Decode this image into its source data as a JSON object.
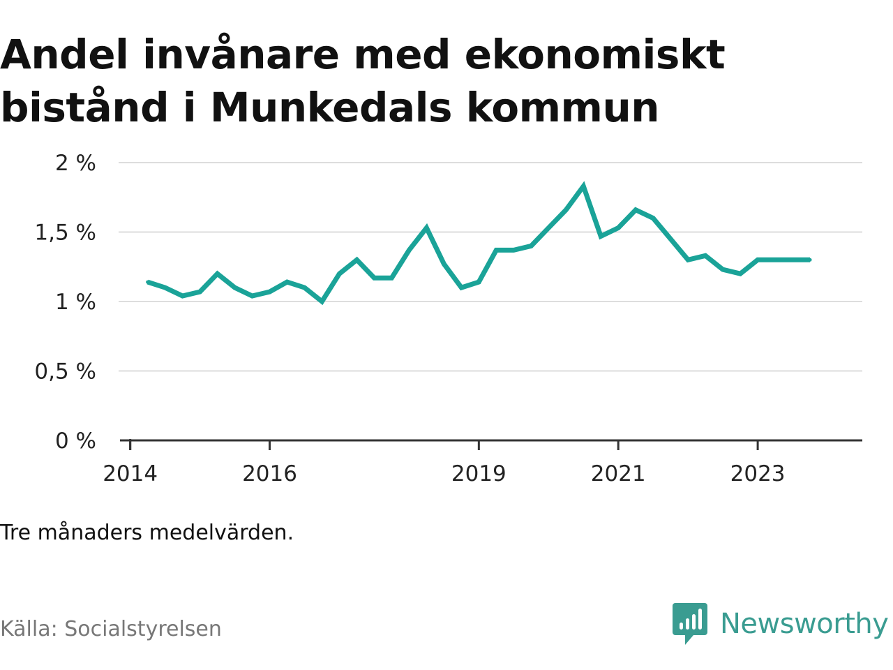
{
  "title_lines": [
    "Andel invånare med ekonomiskt",
    "bistånd i Munkedals kommun"
  ],
  "note": "Tre månaders medelvärden.",
  "source": "Källa: Socialstyrelsen",
  "brand": {
    "name": "Newsworthy",
    "icon": "bar-chart-speech-bubble-icon"
  },
  "colors": {
    "line": "#1aa398",
    "brand": "#3a9c91",
    "grid": "#dddddd",
    "axis": "#333333"
  },
  "chart_data": {
    "type": "line",
    "title": "Andel invånare med ekonomiskt bistånd i Munkedals kommun",
    "xlabel": "",
    "ylabel": "",
    "x_axis_type": "date",
    "ylim": [
      0,
      2
    ],
    "y_ticks": [
      {
        "value": 0,
        "label": "0 %"
      },
      {
        "value": 0.5,
        "label": "0,5 %"
      },
      {
        "value": 1,
        "label": "1 %"
      },
      {
        "value": 1.5,
        "label": "1,5 %"
      },
      {
        "value": 2,
        "label": "2 %"
      }
    ],
    "x_ticks": [
      {
        "date": "2014-01",
        "label": "2014"
      },
      {
        "date": "2016-01",
        "label": "2016"
      },
      {
        "date": "2019-01",
        "label": "2019"
      },
      {
        "date": "2021-01",
        "label": "2021"
      },
      {
        "date": "2023-01",
        "label": "2023"
      }
    ],
    "xlim": [
      "2013-11",
      "2024-07"
    ],
    "grid": true,
    "legend": "none",
    "series": [
      {
        "points": [
          {
            "date": "2014-04",
            "value": 1.14
          },
          {
            "date": "2014-07",
            "value": 1.1
          },
          {
            "date": "2014-10",
            "value": 1.04
          },
          {
            "date": "2015-01",
            "value": 1.07
          },
          {
            "date": "2015-04",
            "value": 1.2
          },
          {
            "date": "2015-07",
            "value": 1.1
          },
          {
            "date": "2015-10",
            "value": 1.04
          },
          {
            "date": "2016-01",
            "value": 1.07
          },
          {
            "date": "2016-04",
            "value": 1.14
          },
          {
            "date": "2016-07",
            "value": 1.1
          },
          {
            "date": "2016-10",
            "value": 1.0
          },
          {
            "date": "2017-01",
            "value": 1.2
          },
          {
            "date": "2017-04",
            "value": 1.3
          },
          {
            "date": "2017-07",
            "value": 1.17
          },
          {
            "date": "2017-10",
            "value": 1.17
          },
          {
            "date": "2018-01",
            "value": 1.37
          },
          {
            "date": "2018-04",
            "value": 1.53
          },
          {
            "date": "2018-07",
            "value": 1.27
          },
          {
            "date": "2018-10",
            "value": 1.1
          },
          {
            "date": "2019-01",
            "value": 1.14
          },
          {
            "date": "2019-04",
            "value": 1.37
          },
          {
            "date": "2019-07",
            "value": 1.37
          },
          {
            "date": "2019-10",
            "value": 1.4
          },
          {
            "date": "2020-01",
            "value": 1.53
          },
          {
            "date": "2020-04",
            "value": 1.66
          },
          {
            "date": "2020-07",
            "value": 1.83
          },
          {
            "date": "2020-10",
            "value": 1.47
          },
          {
            "date": "2021-01",
            "value": 1.53
          },
          {
            "date": "2021-04",
            "value": 1.66
          },
          {
            "date": "2021-07",
            "value": 1.6
          },
          {
            "date": "2021-10",
            "value": 1.45
          },
          {
            "date": "2022-01",
            "value": 1.3
          },
          {
            "date": "2022-04",
            "value": 1.33
          },
          {
            "date": "2022-07",
            "value": 1.23
          },
          {
            "date": "2022-10",
            "value": 1.2
          },
          {
            "date": "2023-01",
            "value": 1.3
          },
          {
            "date": "2023-04",
            "value": 1.3
          },
          {
            "date": "2023-07",
            "value": 1.3
          },
          {
            "date": "2023-10",
            "value": 1.3
          }
        ]
      }
    ]
  }
}
